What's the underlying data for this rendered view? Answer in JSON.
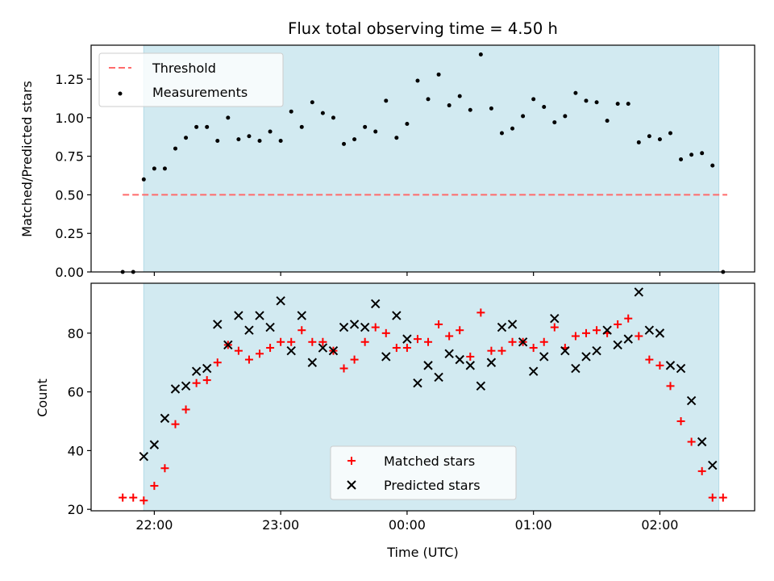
{
  "chart_data": [
    {
      "type": "scatter",
      "title": "Flux total observing time = 4.50 h",
      "xlabel": "",
      "ylabel": "Matched/Predicted stars",
      "ylim": [
        0,
        1.47
      ],
      "yticks": [
        "0.00",
        "0.25",
        "0.50",
        "0.75",
        "1.00",
        "1.25"
      ],
      "ytick_values": [
        0,
        0.25,
        0.5,
        0.75,
        1.0,
        1.25
      ],
      "xlim": [
        "21:30",
        "02:45"
      ],
      "xticks": [
        "22:00",
        "23:00",
        "00:00",
        "01:00",
        "02:00"
      ],
      "x_ticks_labels_shown": false,
      "observing_window": [
        "21:55",
        "02:28"
      ],
      "observing_window_color": "#add8e6",
      "legend_position": "top-left",
      "threshold": {
        "name": "Threshold",
        "value": 0.5,
        "x_range": [
          "21:45",
          "02:32"
        ],
        "color": "#ff6b6b",
        "style": "dashed"
      },
      "series": [
        {
          "name": "Measurements",
          "color": "#000000",
          "marker": "dot",
          "x": [
            "21:45",
            "21:50",
            "21:55",
            "22:00",
            "22:05",
            "22:10",
            "22:15",
            "22:20",
            "22:25",
            "22:30",
            "22:35",
            "22:40",
            "22:45",
            "22:50",
            "22:55",
            "23:00",
            "23:05",
            "23:10",
            "23:15",
            "23:20",
            "23:25",
            "23:30",
            "23:35",
            "23:40",
            "23:45",
            "23:50",
            "23:55",
            "00:00",
            "00:05",
            "00:10",
            "00:15",
            "00:20",
            "00:25",
            "00:30",
            "00:35",
            "00:40",
            "00:45",
            "00:50",
            "00:55",
            "01:00",
            "01:05",
            "01:10",
            "01:15",
            "01:20",
            "01:25",
            "01:30",
            "01:35",
            "01:40",
            "01:45",
            "01:50",
            "01:55",
            "02:00",
            "02:05",
            "02:10",
            "02:15",
            "02:20",
            "02:25",
            "02:30"
          ],
          "y": [
            0.0,
            0.0,
            0.6,
            0.67,
            0.67,
            0.8,
            0.87,
            0.94,
            0.94,
            0.85,
            1.0,
            0.86,
            0.88,
            0.85,
            0.91,
            0.85,
            1.04,
            0.94,
            1.1,
            1.03,
            1.0,
            0.83,
            0.86,
            0.94,
            0.91,
            1.11,
            0.87,
            0.96,
            1.24,
            1.12,
            1.28,
            1.08,
            1.14,
            1.05,
            1.41,
            1.06,
            0.9,
            0.93,
            1.01,
            1.12,
            1.07,
            0.97,
            1.01,
            1.16,
            1.11,
            1.1,
            0.98,
            1.09,
            1.09,
            0.84,
            0.88,
            0.86,
            0.9,
            0.73,
            0.76,
            0.77,
            0.69,
            0.0
          ]
        }
      ]
    },
    {
      "type": "scatter",
      "title": "",
      "xlabel": "Time (UTC)",
      "ylabel": "Count",
      "ylim": [
        19.5,
        97
      ],
      "yticks": [
        "20",
        "40",
        "60",
        "80"
      ],
      "ytick_values": [
        20,
        40,
        60,
        80
      ],
      "xlim": [
        "21:30",
        "02:45"
      ],
      "xticks": [
        "22:00",
        "23:00",
        "00:00",
        "01:00",
        "02:00"
      ],
      "observing_window": [
        "21:55",
        "02:28"
      ],
      "observing_window_color": "#add8e6",
      "legend_position": "bottom-center",
      "series": [
        {
          "name": "Matched stars",
          "color": "#ff0000",
          "marker": "plus",
          "x": [
            "21:45",
            "21:50",
            "21:55",
            "22:00",
            "22:05",
            "22:10",
            "22:15",
            "22:20",
            "22:25",
            "22:30",
            "22:35",
            "22:40",
            "22:45",
            "22:50",
            "22:55",
            "23:00",
            "23:05",
            "23:10",
            "23:15",
            "23:20",
            "23:25",
            "23:30",
            "23:35",
            "23:40",
            "23:45",
            "23:50",
            "23:55",
            "00:00",
            "00:05",
            "00:10",
            "00:15",
            "00:20",
            "00:25",
            "00:30",
            "00:35",
            "00:40",
            "00:45",
            "00:50",
            "00:55",
            "01:00",
            "01:05",
            "01:10",
            "01:15",
            "01:20",
            "01:25",
            "01:30",
            "01:35",
            "01:40",
            "01:45",
            "01:50",
            "01:55",
            "02:00",
            "02:05",
            "02:10",
            "02:15",
            "02:20",
            "02:25",
            "02:30"
          ],
          "y": [
            24,
            24,
            23,
            28,
            34,
            49,
            54,
            63,
            64,
            70,
            76,
            74,
            71,
            73,
            75,
            77,
            77,
            81,
            77,
            77,
            74,
            68,
            71,
            77,
            82,
            80,
            75,
            75,
            78,
            77,
            83,
            79,
            81,
            72,
            87,
            74,
            74,
            77,
            77,
            75,
            77,
            82,
            75,
            79,
            80,
            81,
            80,
            83,
            85,
            79,
            71,
            69,
            62,
            50,
            43,
            33,
            24,
            24
          ]
        },
        {
          "name": "Predicted stars",
          "color": "#000000",
          "marker": "x",
          "x": [
            "21:55",
            "22:00",
            "22:05",
            "22:10",
            "22:15",
            "22:20",
            "22:25",
            "22:30",
            "22:35",
            "22:40",
            "22:45",
            "22:50",
            "22:55",
            "23:00",
            "23:05",
            "23:10",
            "23:15",
            "23:20",
            "23:25",
            "23:30",
            "23:35",
            "23:40",
            "23:45",
            "23:50",
            "23:55",
            "00:00",
            "00:05",
            "00:10",
            "00:15",
            "00:20",
            "00:25",
            "00:30",
            "00:35",
            "00:40",
            "00:45",
            "00:50",
            "00:55",
            "01:00",
            "01:05",
            "01:10",
            "01:15",
            "01:20",
            "01:25",
            "01:30",
            "01:35",
            "01:40",
            "01:45",
            "01:50",
            "01:55",
            "02:00",
            "02:05",
            "02:10",
            "02:15",
            "02:20",
            "02:25"
          ],
          "y": [
            38,
            42,
            51,
            61,
            62,
            67,
            68,
            83,
            76,
            86,
            81,
            86,
            82,
            91,
            74,
            86,
            70,
            75,
            74,
            82,
            83,
            82,
            90,
            72,
            86,
            78,
            63,
            69,
            65,
            73,
            71,
            69,
            62,
            70,
            82,
            83,
            77,
            67,
            72,
            85,
            74,
            68,
            72,
            74,
            81,
            76,
            78,
            94,
            81,
            80,
            69,
            68,
            57,
            43,
            35
          ]
        }
      ]
    }
  ]
}
